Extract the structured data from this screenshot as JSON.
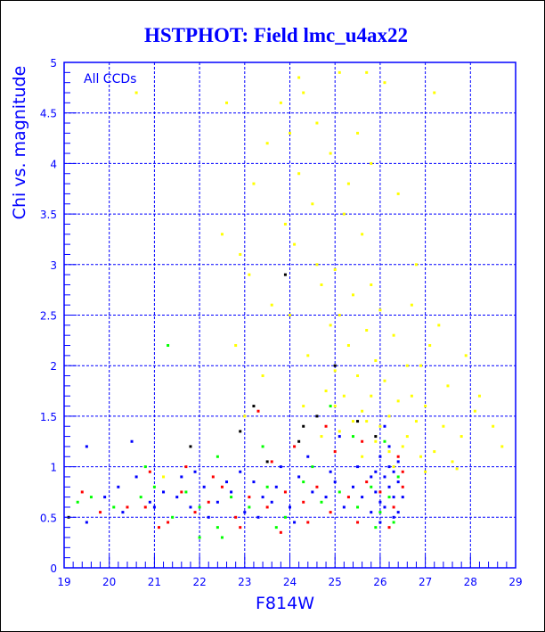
{
  "chart_data": {
    "type": "scatter",
    "title": "HSTPHOT: Field lmc_u4ax22",
    "xlabel": "F814W",
    "ylabel": "Chi vs. magnitude",
    "annotation": "All CCDs",
    "xlim": [
      19,
      29
    ],
    "ylim": [
      0,
      5
    ],
    "xticks": [
      19,
      20,
      21,
      22,
      23,
      24,
      25,
      26,
      27,
      28,
      29
    ],
    "yticks": [
      0,
      0.5,
      1,
      1.5,
      2,
      2.5,
      3,
      3.5,
      4,
      4.5,
      5
    ],
    "ytick_labels": [
      "0",
      "0.5",
      "1",
      "1.5",
      "2",
      "2.5",
      "3",
      "3.5",
      "4",
      "4.5",
      "5"
    ],
    "grid": true,
    "colors": {
      "axis": "#0000ff",
      "grid": "#0000ff",
      "title": "#0000ff"
    },
    "series": [
      {
        "name": "yellow",
        "color": "#ffff00",
        "points": [
          [
            25.1,
            4.9
          ],
          [
            24.3,
            4.7
          ],
          [
            23.8,
            4.6
          ],
          [
            26.1,
            4.8
          ],
          [
            22.6,
            4.6
          ],
          [
            27.2,
            4.7
          ],
          [
            24.6,
            4.4
          ],
          [
            25.5,
            4.3
          ],
          [
            23.5,
            4.2
          ],
          [
            24.9,
            4.1
          ],
          [
            25.8,
            4.0
          ],
          [
            24.2,
            3.9
          ],
          [
            23.2,
            3.8
          ],
          [
            26.4,
            3.7
          ],
          [
            24.5,
            3.6
          ],
          [
            25.2,
            3.5
          ],
          [
            23.9,
            3.4
          ],
          [
            25.6,
            3.3
          ],
          [
            24.1,
            3.2
          ],
          [
            22.9,
            3.1
          ],
          [
            26.8,
            3.0
          ],
          [
            25.0,
            2.95
          ],
          [
            24.7,
            2.8
          ],
          [
            25.4,
            2.7
          ],
          [
            23.6,
            2.6
          ],
          [
            26.0,
            2.55
          ],
          [
            25.1,
            2.5
          ],
          [
            24.9,
            2.4
          ],
          [
            25.7,
            2.35
          ],
          [
            26.3,
            2.3
          ],
          [
            27.1,
            2.2
          ],
          [
            25.3,
            2.2
          ],
          [
            24.4,
            2.1
          ],
          [
            25.9,
            2.05
          ],
          [
            26.6,
            2.0
          ],
          [
            25.0,
            1.95
          ],
          [
            25.5,
            1.9
          ],
          [
            26.1,
            1.85
          ],
          [
            27.5,
            1.8
          ],
          [
            24.8,
            1.75
          ],
          [
            25.2,
            1.7
          ],
          [
            25.8,
            1.7
          ],
          [
            26.4,
            1.65
          ],
          [
            27.0,
            1.6
          ],
          [
            28.1,
            1.55
          ],
          [
            25.6,
            1.55
          ],
          [
            26.2,
            1.5
          ],
          [
            26.8,
            1.45
          ],
          [
            25.4,
            1.45
          ],
          [
            27.4,
            1.4
          ],
          [
            26.0,
            1.4
          ],
          [
            25.1,
            1.35
          ],
          [
            26.6,
            1.3
          ],
          [
            27.8,
            1.3
          ],
          [
            25.9,
            1.25
          ],
          [
            26.5,
            1.2
          ],
          [
            28.7,
            1.2
          ],
          [
            27.2,
            1.15
          ],
          [
            26.9,
            1.1
          ],
          [
            27.6,
            1.05
          ],
          [
            23.0,
            1.5
          ],
          [
            23.4,
            1.9
          ],
          [
            22.8,
            2.2
          ],
          [
            24.0,
            2.5
          ],
          [
            23.1,
            2.9
          ],
          [
            24.6,
            3.0
          ],
          [
            25.3,
            3.8
          ],
          [
            24.0,
            4.3
          ],
          [
            22.5,
            3.3
          ],
          [
            27.9,
            2.1
          ],
          [
            28.2,
            1.7
          ],
          [
            27.3,
            2.4
          ],
          [
            26.7,
            2.6
          ],
          [
            25.8,
            2.8
          ],
          [
            24.3,
            1.6
          ],
          [
            24.7,
            1.3
          ],
          [
            25.6,
            1.1
          ],
          [
            26.3,
            1.0
          ],
          [
            27.0,
            0.95
          ],
          [
            26.7,
            1.7
          ],
          [
            26.9,
            2.0
          ],
          [
            25.7,
            1.45
          ],
          [
            25.0,
            1.6
          ],
          [
            26.2,
            1.15
          ],
          [
            28.5,
            1.4
          ],
          [
            27.7,
            0.98
          ],
          [
            21.2,
            0.9
          ],
          [
            20.6,
            4.7
          ],
          [
            24.2,
            4.85
          ],
          [
            25.7,
            4.9
          ]
        ]
      },
      {
        "name": "blue",
        "color": "#0000ff",
        "points": [
          [
            26.1,
            0.9
          ],
          [
            26.2,
            0.8
          ],
          [
            26.3,
            0.7
          ],
          [
            26.0,
            0.65
          ],
          [
            26.4,
            0.85
          ],
          [
            26.2,
            1.0
          ],
          [
            26.1,
            0.6
          ],
          [
            25.9,
            0.75
          ],
          [
            26.3,
            0.95
          ],
          [
            26.4,
            0.55
          ],
          [
            26.0,
            1.1
          ],
          [
            26.2,
            1.2
          ],
          [
            25.8,
            0.9
          ],
          [
            25.6,
            0.7
          ],
          [
            25.4,
            0.8
          ],
          [
            25.2,
            0.6
          ],
          [
            25.0,
            0.85
          ],
          [
            24.8,
            0.7
          ],
          [
            24.5,
            0.75
          ],
          [
            24.2,
            0.9
          ],
          [
            24.0,
            0.6
          ],
          [
            23.7,
            0.8
          ],
          [
            23.4,
            0.7
          ],
          [
            23.2,
            0.85
          ],
          [
            23.0,
            0.55
          ],
          [
            22.7,
            0.75
          ],
          [
            22.4,
            0.65
          ],
          [
            22.1,
            0.8
          ],
          [
            21.8,
            0.6
          ],
          [
            21.5,
            0.7
          ],
          [
            21.2,
            0.75
          ],
          [
            20.9,
            0.65
          ],
          [
            20.6,
            0.9
          ],
          [
            20.3,
            0.55
          ],
          [
            19.9,
            0.7
          ],
          [
            19.5,
            0.45
          ],
          [
            19.5,
            1.2
          ],
          [
            20.5,
            1.25
          ],
          [
            21.6,
            0.9
          ],
          [
            22.9,
            0.95
          ],
          [
            23.8,
            1.0
          ],
          [
            24.4,
            1.1
          ],
          [
            25.1,
            1.3
          ],
          [
            25.5,
            1.0
          ],
          [
            26.1,
            1.4
          ],
          [
            26.3,
            0.5
          ],
          [
            26.0,
            0.45
          ],
          [
            24.1,
            0.45
          ],
          [
            23.3,
            0.5
          ],
          [
            22.2,
            0.5
          ],
          [
            25.8,
            0.55
          ],
          [
            26.5,
            0.7
          ],
          [
            26.4,
            1.05
          ],
          [
            25.9,
            0.95
          ],
          [
            24.9,
            0.95
          ],
          [
            23.6,
            0.65
          ],
          [
            22.6,
            0.85
          ],
          [
            21.9,
            0.95
          ],
          [
            21.0,
            0.6
          ],
          [
            20.2,
            0.8
          ]
        ]
      },
      {
        "name": "red",
        "color": "#ff0000",
        "points": [
          [
            26.5,
            0.8
          ],
          [
            26.3,
            0.6
          ],
          [
            26.0,
            0.75
          ],
          [
            25.7,
            0.85
          ],
          [
            25.3,
            0.7
          ],
          [
            24.9,
            0.55
          ],
          [
            24.6,
            0.8
          ],
          [
            24.3,
            0.65
          ],
          [
            23.9,
            0.75
          ],
          [
            23.5,
            0.6
          ],
          [
            23.1,
            0.7
          ],
          [
            22.8,
            0.5
          ],
          [
            22.5,
            0.8
          ],
          [
            22.2,
            0.65
          ],
          [
            21.9,
            0.55
          ],
          [
            21.6,
            0.75
          ],
          [
            21.3,
            0.45
          ],
          [
            21.1,
            0.4
          ],
          [
            20.8,
            0.6
          ],
          [
            20.4,
            0.6
          ],
          [
            19.4,
            0.75
          ],
          [
            19.8,
            0.55
          ],
          [
            23.8,
            0.35
          ],
          [
            24.4,
            0.45
          ],
          [
            25.5,
            0.45
          ],
          [
            26.2,
            0.4
          ],
          [
            26.5,
            0.95
          ],
          [
            25.0,
            1.15
          ],
          [
            24.1,
            1.2
          ],
          [
            23.6,
            1.05
          ],
          [
            22.3,
            0.9
          ],
          [
            23.3,
            1.55
          ],
          [
            24.8,
            1.4
          ],
          [
            25.6,
            1.25
          ],
          [
            26.4,
            1.1
          ],
          [
            22.9,
            0.4
          ],
          [
            21.7,
            1.0
          ],
          [
            20.9,
            0.95
          ]
        ]
      },
      {
        "name": "green",
        "color": "#00ff00",
        "points": [
          [
            26.2,
            0.7
          ],
          [
            26.4,
            0.9
          ],
          [
            26.0,
            0.55
          ],
          [
            25.8,
            0.8
          ],
          [
            25.5,
            0.6
          ],
          [
            25.1,
            0.75
          ],
          [
            24.7,
            0.65
          ],
          [
            24.3,
            0.85
          ],
          [
            23.9,
            0.5
          ],
          [
            23.5,
            0.8
          ],
          [
            23.1,
            0.6
          ],
          [
            22.7,
            0.7
          ],
          [
            22.4,
            0.4
          ],
          [
            22.0,
            0.6
          ],
          [
            21.7,
            0.75
          ],
          [
            21.4,
            0.5
          ],
          [
            21.0,
            0.8
          ],
          [
            20.7,
            0.7
          ],
          [
            20.1,
            0.6
          ],
          [
            19.6,
            0.7
          ],
          [
            19.3,
            0.65
          ],
          [
            22.0,
            0.3
          ],
          [
            22.5,
            0.3
          ],
          [
            23.7,
            0.4
          ],
          [
            25.9,
            0.4
          ],
          [
            21.3,
            2.2
          ],
          [
            24.9,
            1.6
          ],
          [
            25.4,
            1.3
          ],
          [
            26.1,
            1.25
          ],
          [
            23.4,
            1.2
          ],
          [
            22.4,
            1.1
          ],
          [
            24.5,
            1.0
          ],
          [
            26.3,
            0.45
          ],
          [
            20.8,
            1.0
          ]
        ]
      },
      {
        "name": "black",
        "color": "#000000",
        "points": [
          [
            19.1,
            0.5
          ],
          [
            23.9,
            2.9
          ],
          [
            23.2,
            1.6
          ],
          [
            22.9,
            1.35
          ],
          [
            24.2,
            1.25
          ],
          [
            25.0,
            2.0
          ],
          [
            25.5,
            1.45
          ],
          [
            24.6,
            1.5
          ],
          [
            21.8,
            1.2
          ],
          [
            23.5,
            1.05
          ],
          [
            25.9,
            1.3
          ],
          [
            24.3,
            1.4
          ]
        ]
      }
    ]
  }
}
